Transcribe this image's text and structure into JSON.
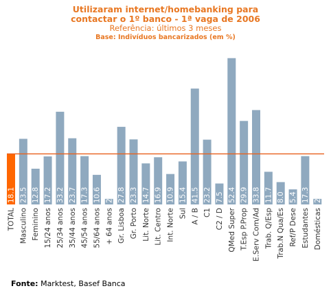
{
  "chart_data": {
    "type": "bar",
    "title": "Utilizaram internet/homebanking para",
    "title_line2": "contactar o 1º banco - 1ª vaga de 2006",
    "subtitle": "Referência: últimos 3 meses",
    "base": "Base: Indivíduos bancarizados (em %)",
    "categories": [
      "TOTAL",
      "Masculino",
      "Feminino",
      "15/24 anos",
      "25/34 anos",
      "35/44 anos",
      "45/54 anos",
      "55/64 anos",
      "+ 64 anos",
      "Gr. Lisboa",
      "Gr. Porto",
      "Lit. Norte",
      "Lit. Centro",
      "Int. Norte",
      "Sul",
      "A / B",
      "C1",
      "C2 / D",
      "QMed Super",
      "T.Esp P.Prop",
      "E.Serv Com/Ad",
      "Trab. Q/Esp",
      "Trab.N Qua/Es",
      "Ref/P Dese",
      "Estudantes",
      "Domésticas"
    ],
    "values": [
      18.1,
      23.5,
      12.8,
      17.2,
      33.2,
      23.7,
      17.3,
      10.6,
      2.0,
      27.8,
      23.3,
      14.7,
      16.9,
      10.9,
      15.4,
      41.5,
      23.2,
      7.5,
      52.4,
      29.9,
      33.8,
      11.7,
      8.0,
      5.4,
      17.3,
      2.0
    ],
    "value_labels": [
      "18.1",
      "23.5",
      "12.8",
      "17.2",
      "33.2",
      "23.7",
      "17.3",
      "10.6",
      "2.0",
      "27.8",
      "23.3",
      "14.7",
      "16.9",
      "10.9",
      "15.4",
      "41.5",
      "23.2",
      "7.5",
      "52.4",
      "29.9",
      "33.8",
      "11.7",
      "8.0",
      "5.4",
      "17.3",
      "2.0"
    ],
    "reference_line": 18.1,
    "highlight_index": 0,
    "colors": {
      "bar": "#8fa9bf",
      "highlight": "#ff6600",
      "reference": "#e8601c",
      "title": "#e87722"
    },
    "ylim": [
      0,
      55
    ],
    "legend": "none",
    "grid": false
  },
  "source": {
    "label": "Fonte:",
    "text": "Marktest, Basef Banca"
  }
}
